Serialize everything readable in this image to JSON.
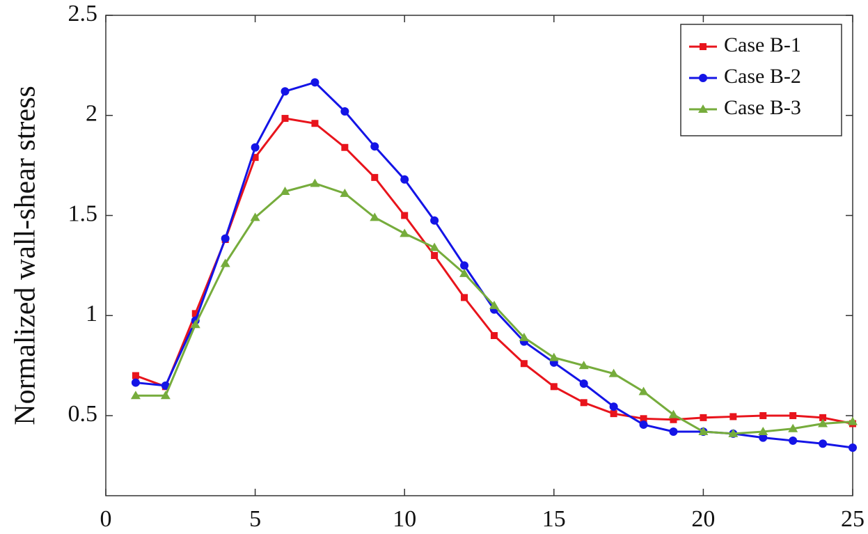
{
  "chart_data": {
    "type": "line",
    "y_label": "Normalized wall-shear stress",
    "x": [
      1,
      2,
      3,
      4,
      5,
      6,
      7,
      8,
      9,
      10,
      11,
      12,
      13,
      14,
      15,
      16,
      17,
      18,
      19,
      20,
      21,
      22,
      23,
      24,
      25
    ],
    "series": [
      {
        "name": "Case B-1",
        "color": "#e8141c",
        "marker": "square",
        "values": [
          0.7,
          0.645,
          1.01,
          1.38,
          1.79,
          1.985,
          1.96,
          1.84,
          1.69,
          1.5,
          1.3,
          1.09,
          0.9,
          0.76,
          0.645,
          0.565,
          0.51,
          0.485,
          0.48,
          0.49,
          0.495,
          0.5,
          0.5,
          0.49,
          0.46
        ]
      },
      {
        "name": "Case B-2",
        "color": "#1414e6",
        "marker": "circle",
        "values": [
          0.665,
          0.65,
          0.975,
          1.385,
          1.84,
          2.12,
          2.165,
          2.02,
          1.845,
          1.68,
          1.475,
          1.25,
          1.03,
          0.87,
          0.765,
          0.66,
          0.545,
          0.455,
          0.42,
          0.42,
          0.41,
          0.39,
          0.375,
          0.36,
          0.34
        ]
      },
      {
        "name": "Case B-3",
        "color": "#76ac3c",
        "marker": "triangle",
        "values": [
          0.6,
          0.6,
          0.955,
          1.26,
          1.49,
          1.62,
          1.66,
          1.61,
          1.49,
          1.41,
          1.34,
          1.21,
          1.05,
          0.89,
          0.79,
          0.75,
          0.71,
          0.62,
          0.505,
          0.42,
          0.41,
          0.42,
          0.435,
          0.46,
          0.47
        ]
      }
    ],
    "xlim": [
      0,
      25
    ],
    "xticks": [
      0,
      5,
      10,
      15,
      20,
      25
    ],
    "ylim": [
      0.1,
      2.5
    ],
    "yticks": [
      0.5,
      1,
      1.5,
      2,
      2.5
    ],
    "grid": false,
    "legend": "top-right"
  }
}
